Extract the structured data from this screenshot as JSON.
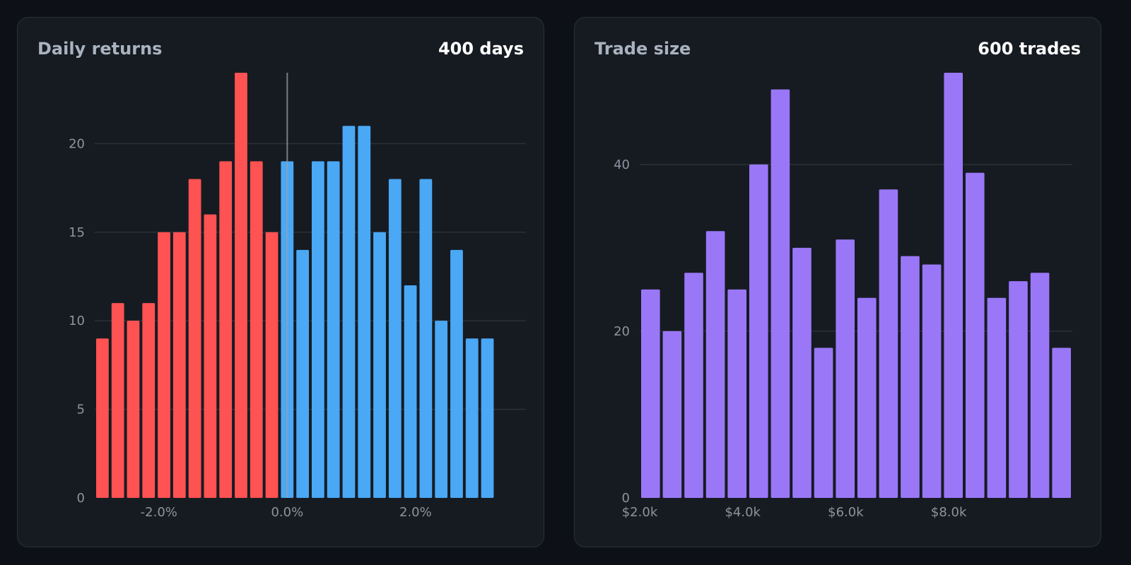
{
  "cards": [
    {
      "title": "Daily returns",
      "count": "400 days"
    },
    {
      "title": "Trade size",
      "count": "600 trades"
    }
  ],
  "colors": {
    "negative": "#ff5252",
    "positive": "#4aa8f5",
    "trade": "#9a77f7",
    "grid": "#2b3139",
    "zero_line": "#9aa0a6"
  },
  "chart_data": [
    {
      "type": "bar",
      "title": "Daily returns",
      "xlabel": "",
      "ylabel": "",
      "x_unit": "percent",
      "bin_width": 0.24,
      "x_start": -3.0,
      "xlim": [
        -3.0,
        3.72
      ],
      "ylim": [
        0,
        24
      ],
      "yticks": [
        0,
        5,
        10,
        15,
        20
      ],
      "ytick_labels": [
        "0",
        "5",
        "10",
        "15",
        "20"
      ],
      "xticks": [
        -2.0,
        0.0,
        2.0
      ],
      "xtick_labels": [
        "-2.0%",
        "0.0%",
        "2.0%"
      ],
      "zero_line_x": 0.0,
      "grid": true,
      "values": [
        9,
        11,
        10,
        11,
        15,
        15,
        18,
        16,
        19,
        24,
        19,
        15,
        19,
        14,
        19,
        19,
        21,
        21,
        15,
        18,
        12,
        18,
        10,
        14,
        9,
        9
      ]
    },
    {
      "type": "bar",
      "title": "Trade size",
      "xlabel": "",
      "ylabel": "",
      "x_unit": "dollars",
      "bin_width": 420,
      "x_start": 2000,
      "xlim": [
        2000,
        10400
      ],
      "ylim": [
        0,
        51
      ],
      "yticks": [
        0,
        20,
        40
      ],
      "ytick_labels": [
        "0",
        "20",
        "40"
      ],
      "xticks": [
        2000,
        4000,
        6000,
        8000
      ],
      "xtick_labels": [
        "$2.0k",
        "$4.0k",
        "$6.0k",
        "$8.0k"
      ],
      "grid": true,
      "values": [
        25,
        20,
        27,
        32,
        25,
        40,
        49,
        30,
        18,
        31,
        24,
        37,
        29,
        28,
        51,
        39,
        24,
        26,
        27,
        18
      ]
    }
  ]
}
